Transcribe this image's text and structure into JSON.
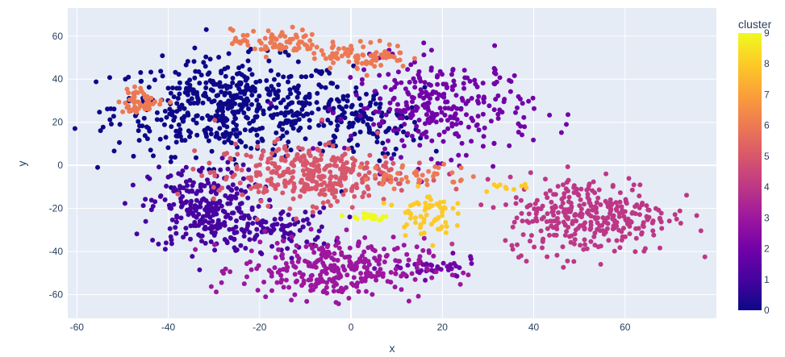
{
  "chart_data": {
    "type": "scatter",
    "title": "",
    "xlabel": "x",
    "ylabel": "y",
    "xlim": [
      -62,
      80
    ],
    "ylim": [
      -71,
      73
    ],
    "x_ticks": [
      -60,
      -40,
      -20,
      0,
      20,
      40,
      60
    ],
    "y_ticks": [
      -60,
      -40,
      -20,
      0,
      20,
      40,
      60
    ],
    "grid": true,
    "plot_bgcolor": "#e5ecf6",
    "grid_color": "#ffffff",
    "colorbar": {
      "title": "cluster",
      "min": 0,
      "max": 9,
      "ticks": [
        0,
        1,
        2,
        3,
        4,
        5,
        6,
        7,
        8,
        9
      ],
      "colorscale": [
        "#0d0887",
        "#46039f",
        "#7201a8",
        "#9c179e",
        "#bd3786",
        "#d8576b",
        "#ed7953",
        "#fb9f3a",
        "#fdca26",
        "#f0f921"
      ]
    },
    "clusters": [
      {
        "cluster": 0,
        "cx": -26,
        "cy": 27,
        "sx": 13,
        "sy": 11,
        "n": 520
      },
      {
        "cluster": 0,
        "cx": 2,
        "cy": 20,
        "sx": 7,
        "sy": 8,
        "n": 120
      },
      {
        "cluster": 1,
        "cx": -32,
        "cy": -20,
        "sx": 6,
        "sy": 10,
        "n": 260
      },
      {
        "cluster": 1,
        "cx": -16,
        "cy": -30,
        "sx": 6,
        "sy": 5,
        "n": 90
      },
      {
        "cluster": 2,
        "cx": 20,
        "cy": 27,
        "sx": 10,
        "sy": 11,
        "n": 290
      },
      {
        "cluster": 2,
        "cx": 18,
        "cy": -48,
        "sx": 5,
        "sy": 2.5,
        "n": 40
      },
      {
        "cluster": 3,
        "cx": -4,
        "cy": -48,
        "sx": 10,
        "sy": 7,
        "n": 300
      },
      {
        "cluster": 4,
        "cx": 52,
        "cy": -23,
        "sx": 9,
        "sy": 9,
        "n": 340
      },
      {
        "cluster": 5,
        "cx": -10,
        "cy": -4,
        "sx": 10,
        "sy": 7,
        "n": 330
      },
      {
        "cluster": 6,
        "cx": -16,
        "cy": 57,
        "sx": 5,
        "sy": 3,
        "n": 80
      },
      {
        "cluster": 6,
        "cx": 3,
        "cy": 51,
        "sx": 5,
        "sy": 3,
        "n": 80
      },
      {
        "cluster": 6,
        "cx": -46,
        "cy": 30,
        "sx": 2.5,
        "sy": 3,
        "n": 50
      },
      {
        "cluster": 6,
        "cx": 14,
        "cy": -5,
        "sx": 6,
        "sy": 3,
        "n": 45
      },
      {
        "cluster": 8,
        "cx": 16,
        "cy": -22,
        "sx": 3,
        "sy": 5,
        "n": 60
      },
      {
        "cluster": 8,
        "cx": 34,
        "cy": -10,
        "sx": 3,
        "sy": 2,
        "n": 10
      },
      {
        "cluster": 9,
        "cx": 4,
        "cy": -24,
        "sx": 2.5,
        "sy": 1,
        "n": 22
      }
    ]
  }
}
